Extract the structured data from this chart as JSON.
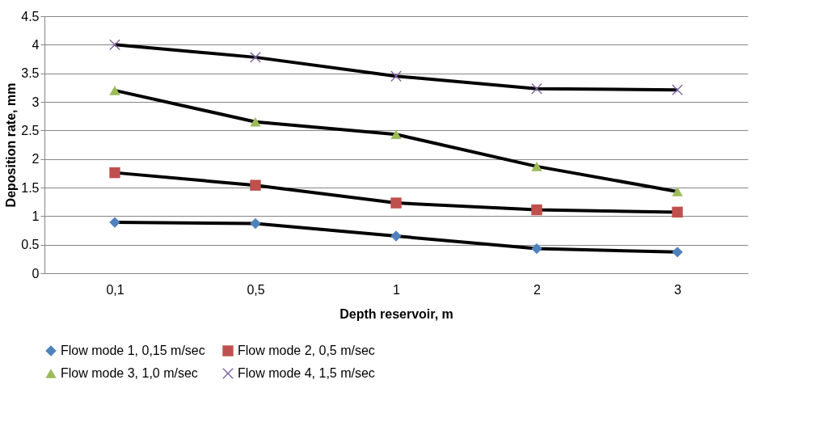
{
  "chart_data": {
    "type": "line",
    "xlabel": "Depth reservoir, m",
    "ylabel": "Deposition rate, mm",
    "categories": [
      "0,1",
      "0,5",
      "1",
      "2",
      "3"
    ],
    "ylim": [
      0,
      4.5
    ],
    "yticks": [
      0,
      0.5,
      1,
      1.5,
      2,
      2.5,
      3,
      3.5,
      4,
      4.5
    ],
    "grid": "y",
    "legend": "bottom",
    "line_style": "solid",
    "series": [
      {
        "name": "Flow mode 1, 0,15 m/sec",
        "color": "#4f81bd",
        "marker": "diamond",
        "values": [
          0.89,
          0.87,
          0.65,
          0.43,
          0.37
        ]
      },
      {
        "name": "Flow mode 2, 0,5 m/sec",
        "color": "#c0504d",
        "marker": "square",
        "values": [
          1.76,
          1.54,
          1.23,
          1.11,
          1.07
        ]
      },
      {
        "name": "Flow mode 3, 1,0 m/sec",
        "color": "#9bbb59",
        "marker": "triangle",
        "values": [
          3.2,
          2.65,
          2.43,
          1.87,
          1.43
        ]
      },
      {
        "name": "Flow mode 4, 1,5 m/sec",
        "color": "#8064a2",
        "marker": "cross",
        "values": [
          4.0,
          3.78,
          3.45,
          3.23,
          3.21
        ]
      }
    ]
  }
}
